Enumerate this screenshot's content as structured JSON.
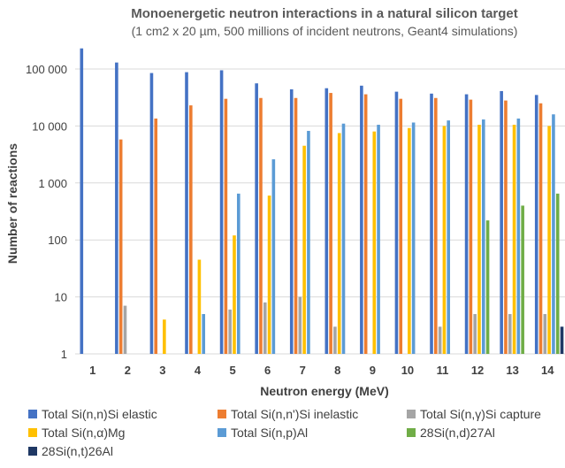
{
  "chart_data": {
    "type": "bar",
    "title": "Monoenergetic neutron interactions in a natural silicon target",
    "subtitle": "(1 cm2 x 20 µm, 500 millions of incident neutrons, Geant4 simulations)",
    "xlabel": "Neutron energy (MeV)",
    "ylabel": "Number of reactions",
    "yscale": "log",
    "ylim": [
      1,
      400000
    ],
    "ytick_labels": [
      "1",
      "10",
      "100",
      "1 000",
      "10 000",
      "100 000"
    ],
    "grid": "horizontal",
    "legend_position": "bottom",
    "categories": [
      "1",
      "2",
      "3",
      "4",
      "5",
      "6",
      "7",
      "8",
      "9",
      "10",
      "11",
      "12",
      "13",
      "14"
    ],
    "series": [
      {
        "name": "Total Si(n,n)Si elastic",
        "color": "#4472C4",
        "values": [
          230000,
          130000,
          85000,
          88000,
          95000,
          56000,
          44000,
          46000,
          51000,
          40000,
          37000,
          36000,
          41000,
          35000
        ]
      },
      {
        "name": "Total Si(n,n')Si inelastic",
        "color": "#ED7D31",
        "values": [
          null,
          5800,
          13500,
          23000,
          30000,
          31000,
          31000,
          38000,
          36000,
          30000,
          31000,
          29000,
          28000,
          25000
        ]
      },
      {
        "name": "Total Si(n,γ)Si capture",
        "color": "#A5A5A5",
        "values": [
          null,
          7,
          null,
          null,
          6,
          8,
          10,
          3,
          null,
          null,
          3,
          5,
          5,
          5
        ]
      },
      {
        "name": "Total Si(n,α)Mg",
        "color": "#FFC000",
        "values": [
          null,
          null,
          4,
          45,
          120,
          600,
          4500,
          7500,
          8000,
          9200,
          10000,
          10500,
          10500,
          10000
        ]
      },
      {
        "name": "Total Si(n,p)Al",
        "color": "#5B9BD5",
        "values": [
          null,
          null,
          null,
          5,
          650,
          2600,
          8200,
          11000,
          10500,
          11500,
          12500,
          13000,
          13500,
          16000
        ]
      },
      {
        "name": "28Si(n,d)27Al",
        "color": "#70AD47",
        "values": [
          null,
          null,
          null,
          null,
          null,
          null,
          null,
          null,
          null,
          null,
          null,
          220,
          400,
          650
        ]
      },
      {
        "name": "28Si(n,t)26Al",
        "color": "#1F3864",
        "values": [
          null,
          null,
          null,
          null,
          null,
          null,
          null,
          null,
          null,
          null,
          null,
          null,
          null,
          3
        ]
      }
    ]
  }
}
